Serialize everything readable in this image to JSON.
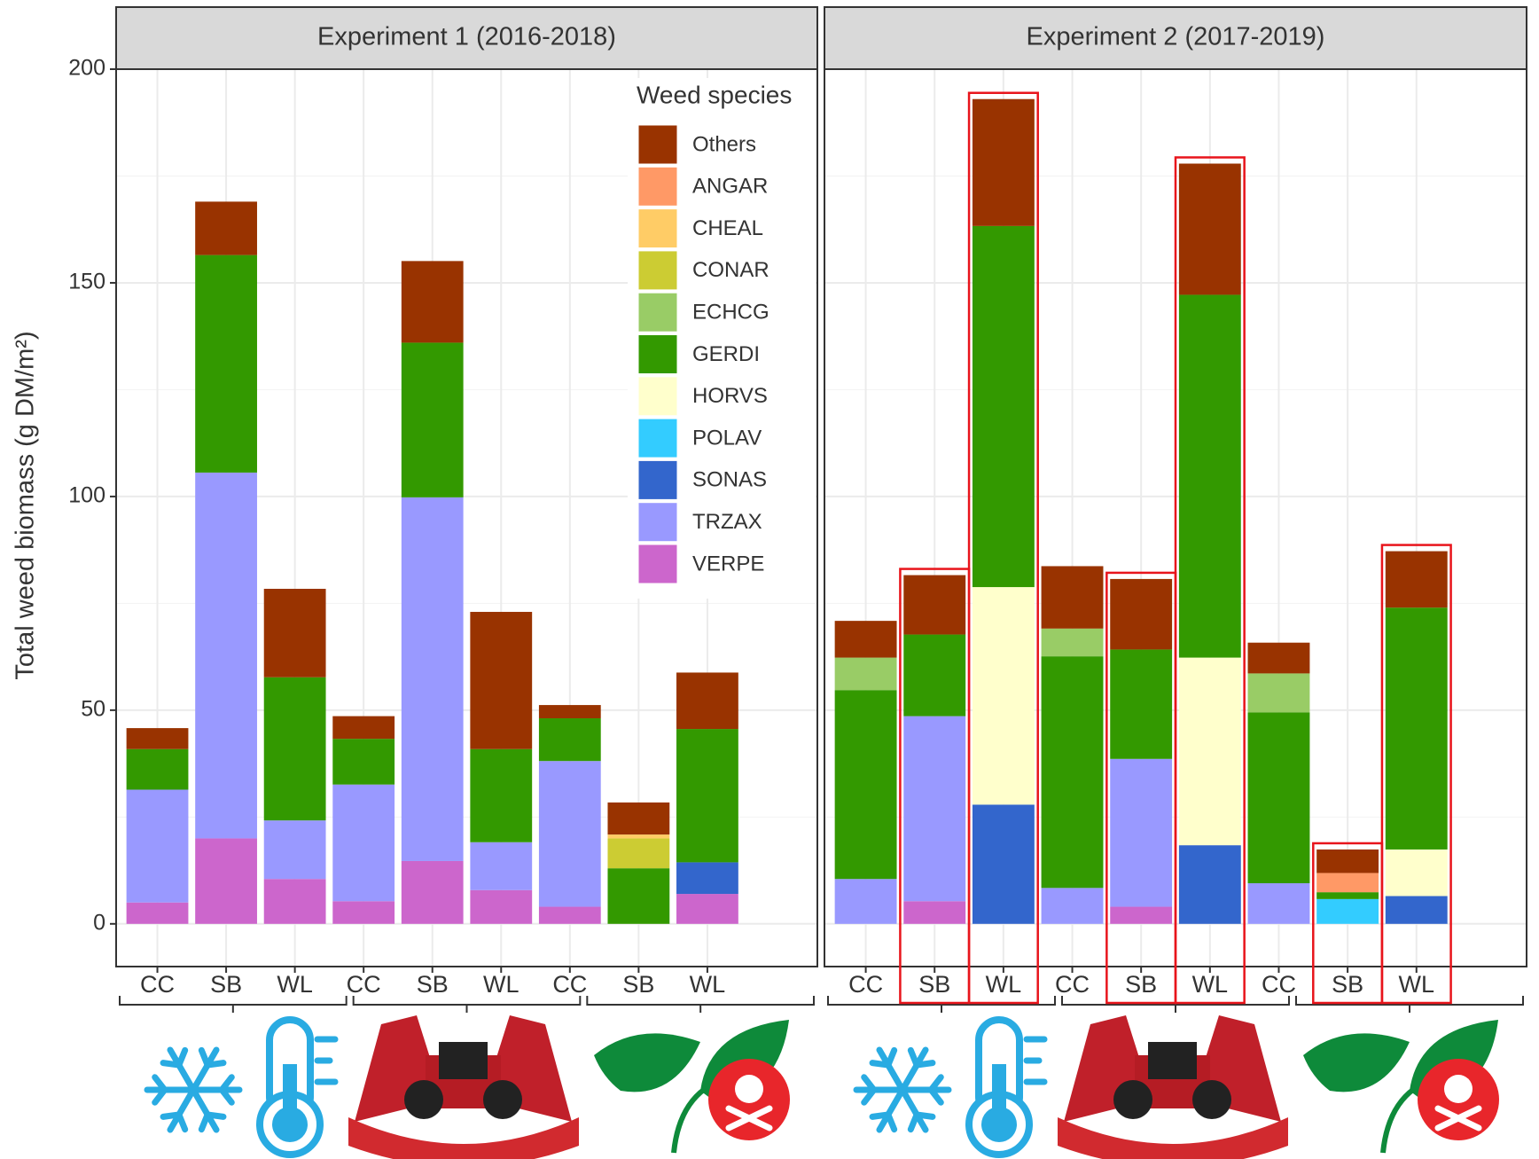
{
  "chart_data": [
    {
      "type": "bar",
      "stacked": true,
      "title": "Experiment 1 (2016-2018)",
      "ylabel": "Total weed biomass (g DM/m²)",
      "legend_title": "Weed species",
      "legend_position": "top-right",
      "categories": [
        "CC",
        "SB",
        "WL",
        "CC",
        "SB",
        "WL",
        "CC",
        "SB",
        "WL"
      ],
      "ylim": [
        -10,
        200
      ],
      "yticks": [
        0,
        50,
        100,
        150,
        200
      ],
      "grid": true,
      "series": [
        {
          "name": "Others",
          "color": "#993300",
          "values": [
            4.9,
            12.5,
            20.7,
            5.3,
            19.1,
            32.1,
            3.1,
            7.5,
            13.2
          ]
        },
        {
          "name": "ANGAR",
          "color": "#ff9966",
          "values": [
            0,
            0,
            0,
            0,
            0,
            0,
            0,
            0,
            0
          ]
        },
        {
          "name": "CHEAL",
          "color": "#ffcc66",
          "values": [
            0,
            0,
            0,
            0,
            0,
            0,
            0,
            0.9,
            0
          ]
        },
        {
          "name": "CONAR",
          "color": "#cccc33",
          "values": [
            0,
            0,
            0,
            0,
            0,
            0,
            0,
            7,
            0
          ]
        },
        {
          "name": "ECHCG",
          "color": "#99cc66",
          "values": [
            0,
            0,
            0,
            0,
            0,
            0,
            0,
            0,
            0
          ]
        },
        {
          "name": "GERDI",
          "color": "#339900",
          "values": [
            9.5,
            50.9,
            33.5,
            10.7,
            36.2,
            21.8,
            10,
            13,
            31.2
          ]
        },
        {
          "name": "HORVS",
          "color": "#ffffcc",
          "values": [
            0,
            0,
            0,
            0,
            0,
            0,
            0,
            0,
            0
          ]
        },
        {
          "name": "POLAV",
          "color": "#33ccff",
          "values": [
            0,
            0,
            0,
            0,
            0,
            0,
            0,
            0,
            0
          ]
        },
        {
          "name": "SONAS",
          "color": "#3366cc",
          "values": [
            0,
            0,
            0,
            0,
            0,
            0,
            0,
            0,
            7.4
          ]
        },
        {
          "name": "TRZAX",
          "color": "#9999ff",
          "values": [
            26.4,
            85.6,
            13.7,
            27.3,
            85.1,
            11.2,
            34.1,
            0,
            0
          ]
        },
        {
          "name": "VERPE",
          "color": "#cc66cc",
          "values": [
            5,
            20,
            10.5,
            5.3,
            14.7,
            7.9,
            4,
            0,
            7
          ]
        }
      ]
    },
    {
      "type": "bar",
      "stacked": true,
      "title": "Experiment 2 (2017-2019)",
      "categories": [
        "CC",
        "SB",
        "WL",
        "CC",
        "SB",
        "WL",
        "CC",
        "SB",
        "WL"
      ],
      "ylim": [
        -10,
        200
      ],
      "yticks": [
        0,
        50,
        100,
        150,
        200
      ],
      "grid": true,
      "highlighted": [
        1,
        2,
        4,
        5,
        7,
        8
      ],
      "series": [
        {
          "name": "Others",
          "color": "#993300",
          "values": [
            8.6,
            13.9,
            29.7,
            14.6,
            16.5,
            30.7,
            7.2,
            5.5,
            13.2
          ]
        },
        {
          "name": "ANGAR",
          "color": "#ff9966",
          "values": [
            0,
            0,
            0,
            0,
            0,
            0,
            0,
            4.5,
            0
          ]
        },
        {
          "name": "CHEAL",
          "color": "#ffcc66",
          "values": [
            0,
            0,
            0,
            0,
            0,
            0,
            0,
            0,
            0
          ]
        },
        {
          "name": "CONAR",
          "color": "#cccc33",
          "values": [
            0,
            0,
            0,
            0,
            0,
            0,
            0,
            0,
            0
          ]
        },
        {
          "name": "ECHCG",
          "color": "#99cc66",
          "values": [
            7.6,
            0,
            0,
            6.5,
            0,
            0,
            9.1,
            0,
            0
          ]
        },
        {
          "name": "GERDI",
          "color": "#339900",
          "values": [
            44.2,
            19.1,
            84.5,
            54.2,
            25.6,
            84.9,
            40,
            1.6,
            56.6
          ]
        },
        {
          "name": "HORVS",
          "color": "#ffffcc",
          "values": [
            0,
            0,
            50.9,
            0,
            0,
            43.9,
            0,
            0,
            10.9
          ]
        },
        {
          "name": "POLAV",
          "color": "#33ccff",
          "values": [
            0,
            0,
            0,
            0,
            0,
            0,
            0,
            5.8,
            0
          ]
        },
        {
          "name": "SONAS",
          "color": "#3366cc",
          "values": [
            0,
            0,
            27.9,
            0,
            0,
            18.4,
            0,
            0,
            6.5
          ]
        },
        {
          "name": "TRZAX",
          "color": "#9999ff",
          "values": [
            10.5,
            43.3,
            0,
            8.4,
            34.6,
            0,
            9.5,
            0,
            0
          ]
        },
        {
          "name": "VERPE",
          "color": "#cc66cc",
          "values": [
            0,
            5.3,
            0,
            0,
            4,
            0,
            0,
            0,
            0
          ]
        }
      ]
    }
  ]
}
